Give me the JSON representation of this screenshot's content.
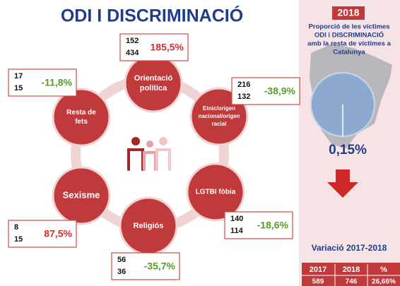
{
  "title": "ODI I DISCRIMINACIÓ",
  "nodes": [
    {
      "label": [
        "Orientació",
        "política"
      ],
      "values": [
        152,
        434
      ],
      "change": "185,5%",
      "color": "#d03030"
    },
    {
      "label": [
        "Etnic/origen",
        "nacional/origen",
        "racial"
      ],
      "values": [
        216,
        132
      ],
      "change": "-38,9%",
      "color": "#5a9a2a"
    },
    {
      "label": [
        "LGTBI fòbia"
      ],
      "values": [
        140,
        114
      ],
      "change": "-18,6%",
      "color": "#5a9a2a"
    },
    {
      "label": [
        "Religiós"
      ],
      "values": [
        56,
        36
      ],
      "change": "-35,7%",
      "color": "#5a9a2a"
    },
    {
      "label": [
        "Sexisme"
      ],
      "values": [
        8,
        15
      ],
      "change": "87,5%",
      "color": "#d03030"
    },
    {
      "label": [
        "Resta de",
        "fets"
      ],
      "values": [
        17,
        15
      ],
      "change": "-11,8%",
      "color": "#5a9a2a"
    }
  ],
  "panel": {
    "year": "2018",
    "caption": [
      "Proporció de les víctimes",
      "ODI i DISCRIMINACIÓ",
      "amb la resta de víctimes a",
      "Catalunya"
    ],
    "share": "0,15%",
    "variation": "Variació 2017-2018",
    "table": {
      "header": [
        "2017",
        "2018",
        "%"
      ],
      "row": [
        "589",
        "746",
        "26,66%"
      ]
    }
  }
}
